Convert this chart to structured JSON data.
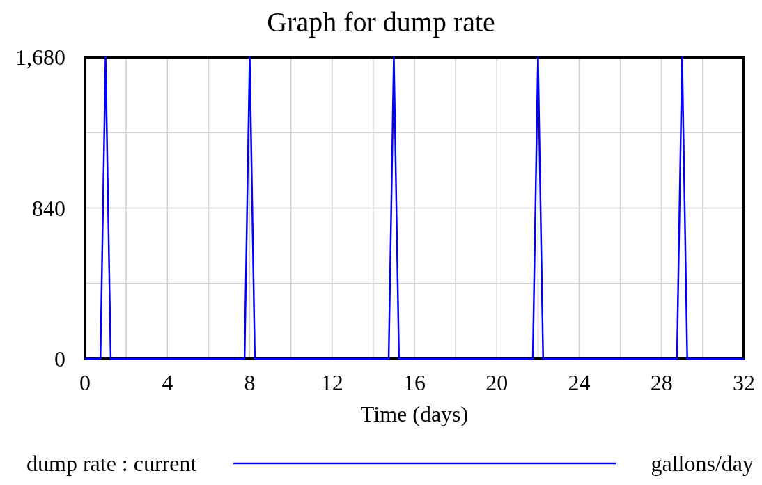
{
  "chart_data": {
    "type": "line",
    "title": "Graph for dump rate",
    "xlabel": "Time (days)",
    "x": [
      0,
      0.75,
      1,
      1.25,
      7.75,
      8,
      8.25,
      14.75,
      15,
      15.25,
      21.75,
      22,
      22.25,
      28.75,
      29,
      29.25,
      32
    ],
    "series": [
      {
        "name": "dump rate : current",
        "color": "#0000ff",
        "values": [
          0,
          0,
          1680,
          0,
          0,
          1680,
          0,
          0,
          1680,
          0,
          0,
          1680,
          0,
          0,
          1680,
          0,
          0
        ]
      }
    ],
    "xlim": [
      0,
      32
    ],
    "xticks": [
      0,
      {
        "value": 2,
        "label": null
      },
      4,
      {
        "value": 6,
        "label": null
      },
      8,
      {
        "value": 10,
        "label": null
      },
      12,
      {
        "value": 14,
        "label": null
      },
      16,
      {
        "value": 18,
        "label": null
      },
      20,
      {
        "value": 22,
        "label": null
      },
      24,
      {
        "value": 26,
        "label": null
      },
      28,
      {
        "value": 30,
        "label": null
      },
      32
    ],
    "ylim": [
      0,
      1680
    ],
    "yticks": [
      0,
      {
        "value": 420,
        "label": null
      },
      840,
      {
        "value": 1260,
        "label": null
      },
      {
        "value": 1680,
        "label": "1,680"
      }
    ],
    "grid": true,
    "legend": "bottom",
    "annotations": [
      "gallons/day"
    ]
  }
}
